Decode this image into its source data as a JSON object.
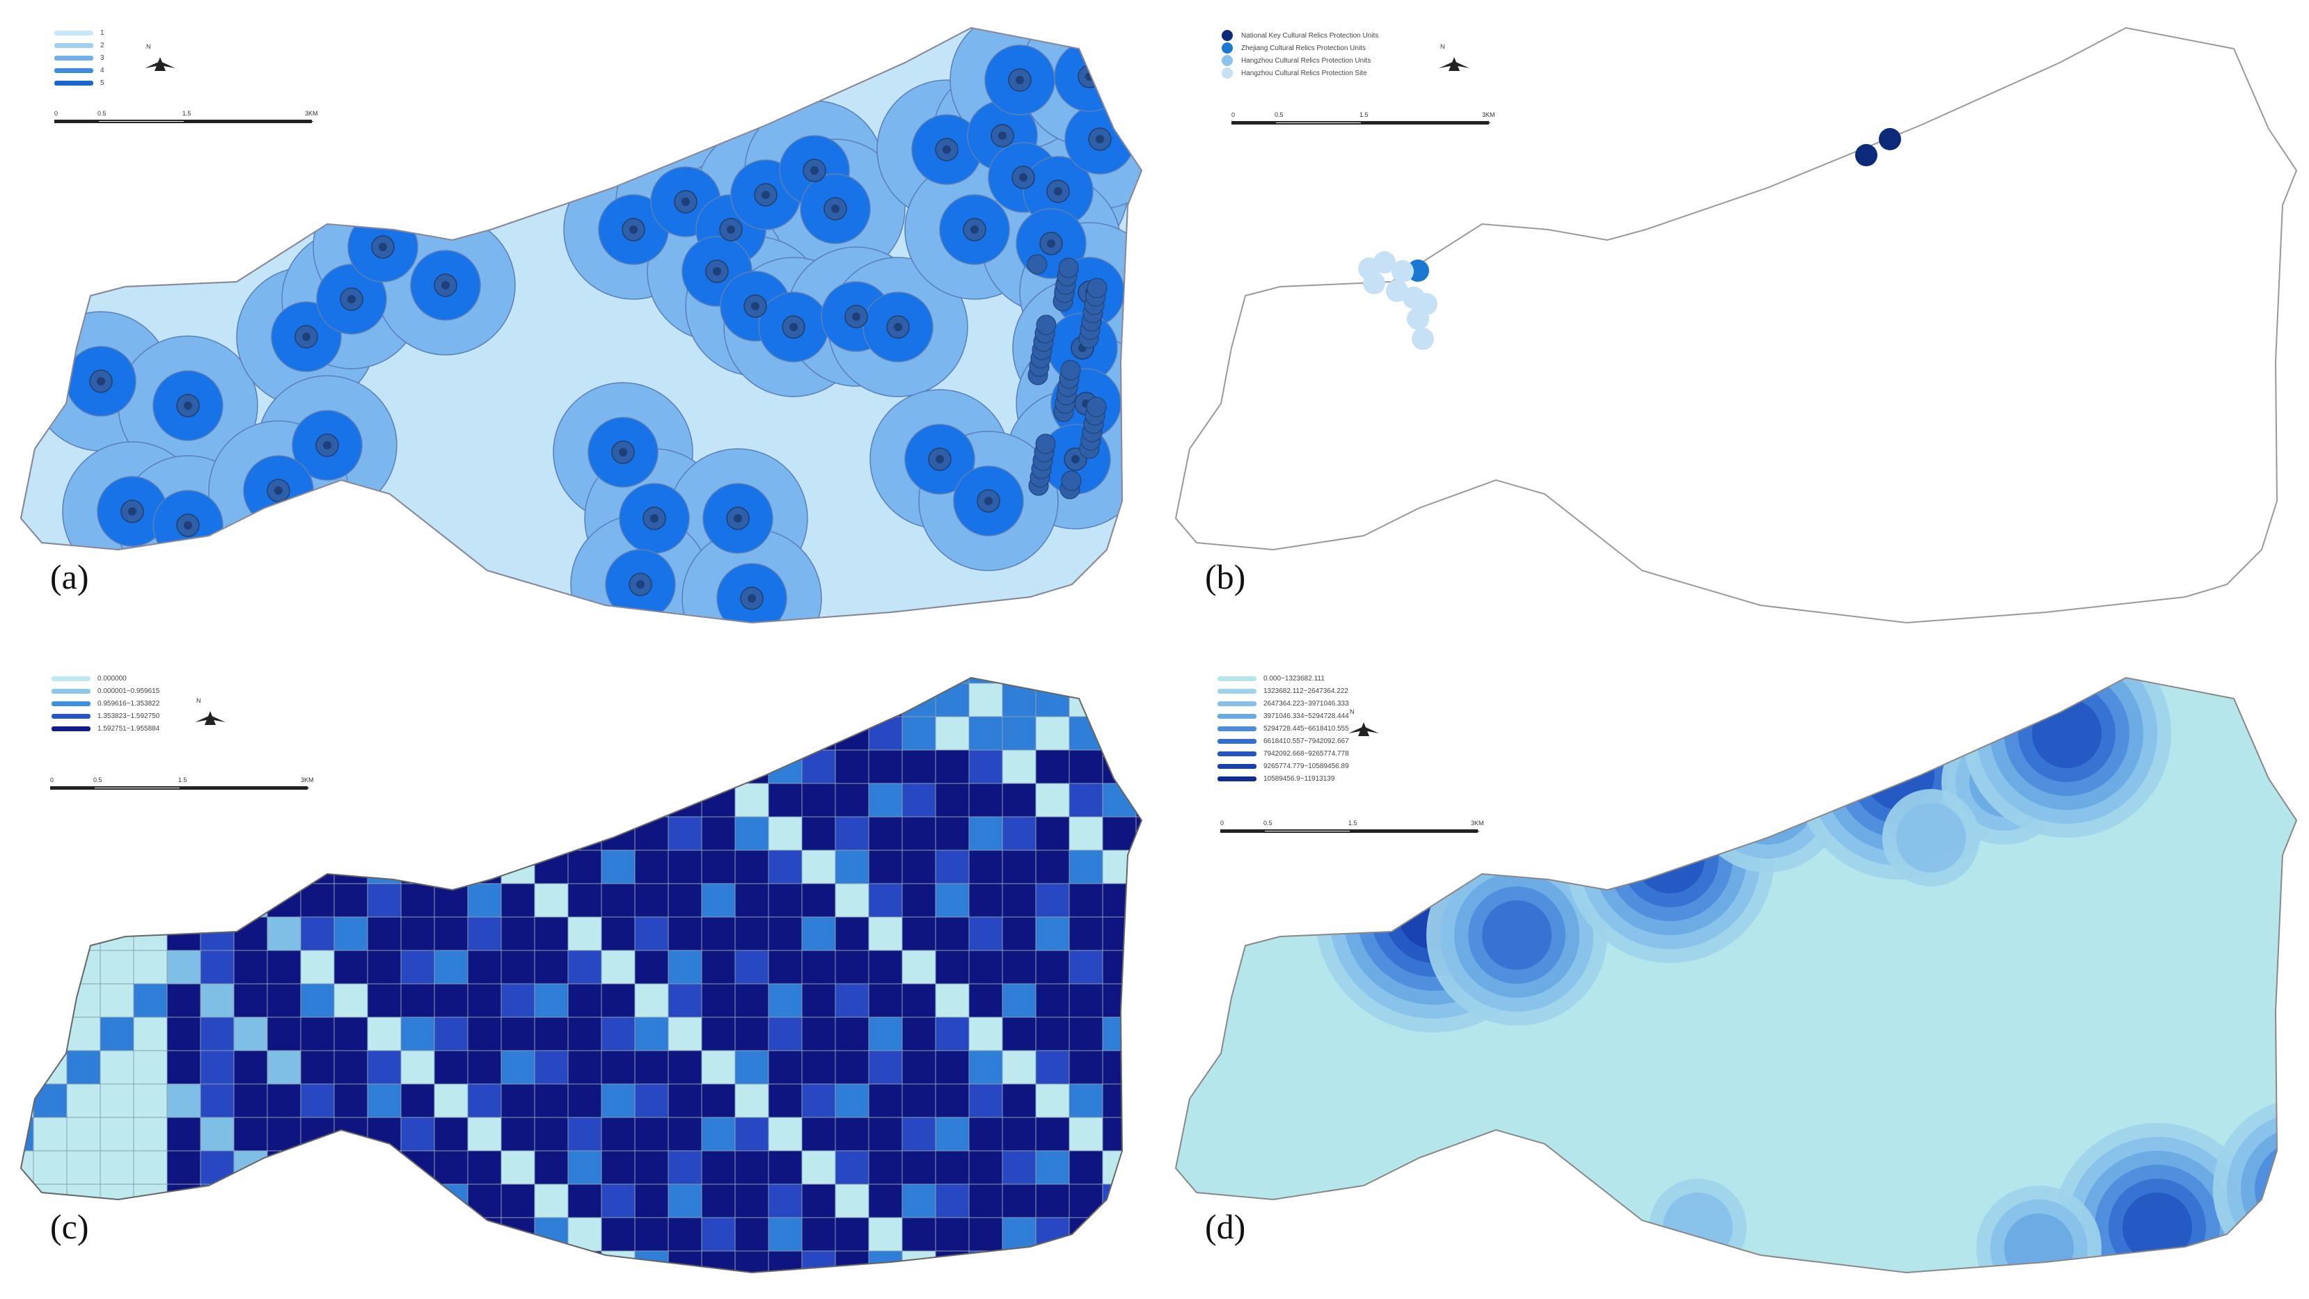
{
  "panels": [
    {
      "id": "a",
      "label": "(a)",
      "legend_type": "line",
      "legend": [
        {
          "text": "1",
          "color": "#c9e7fa"
        },
        {
          "text": "2",
          "color": "#9fd0f2"
        },
        {
          "text": "3",
          "color": "#6fb0ea"
        },
        {
          "text": "4",
          "color": "#3f8de2"
        },
        {
          "text": "5",
          "color": "#1866d6"
        }
      ],
      "north_label": "N",
      "scale_ticks": [
        "0",
        "0.5",
        "1.5",
        "3KM"
      ]
    },
    {
      "id": "b",
      "label": "(b)",
      "legend_type": "dot",
      "legend": [
        {
          "text": "National Key Cultural Relics Protection Units",
          "color": "#0d2a7a"
        },
        {
          "text": "Zhejiang Cultural Relics Protection Units",
          "color": "#1a78d2"
        },
        {
          "text": "Hangzhou Cultural Relics Protection Units",
          "color": "#8cc3ec"
        },
        {
          "text": "Hangzhou Cultural Relics Protection Site",
          "color": "#c6e0f6"
        }
      ],
      "north_label": "N",
      "scale_ticks": [
        "0",
        "0.5",
        "1.5",
        "3KM"
      ]
    },
    {
      "id": "c",
      "label": "(c)",
      "legend_type": "line",
      "legend": [
        {
          "text": "0.000000",
          "color": "#bde9ef"
        },
        {
          "text": "0.000001~0.959615",
          "color": "#8cc8ec"
        },
        {
          "text": "0.959616~1.353822",
          "color": "#3d8fe0"
        },
        {
          "text": "1.353823~1.592750",
          "color": "#2a55c8"
        },
        {
          "text": "1.592751~1.955884",
          "color": "#101a8c"
        }
      ],
      "north_label": "N",
      "scale_ticks": [
        "0",
        "0.5",
        "1.5",
        "3KM"
      ]
    },
    {
      "id": "d",
      "label": "(d)",
      "legend_type": "line",
      "legend": [
        {
          "text": "0.000~1323682.111",
          "color": "#b4e6ec"
        },
        {
          "text": "1323682.112~2647364.222",
          "color": "#9ed3ec"
        },
        {
          "text": "2647364.223~3971046.333",
          "color": "#86c0ea"
        },
        {
          "text": "3971046.334~5294728.444",
          "color": "#6aa8e4"
        },
        {
          "text": "5294728.445~6618410.555",
          "color": "#4d8cdc"
        },
        {
          "text": "6618410.557~7942092.667",
          "color": "#3470d2"
        },
        {
          "text": "7942092.668~9265774.778",
          "color": "#2456c2"
        },
        {
          "text": "9265774.779~10589456.89",
          "color": "#1840ae"
        },
        {
          "text": "10589456.9~11913139",
          "color": "#0f2c8e"
        }
      ],
      "north_label": "N",
      "scale_ticks": [
        "0",
        "0.5",
        "1.5",
        "3KM"
      ]
    }
  ],
  "colors": {
    "buffer_outer": "#c4e4f8",
    "buffer_mid": "#7cb6ee",
    "buffer_inner": "#1872e8",
    "buffer_core": "#2f5fa8",
    "buffer_center": "#1d3f7a",
    "grid_pale": "#bde9ef",
    "grid_light": "#7fbfe6",
    "grid_mid": "#2f7fd8",
    "grid_dark": "#2748c2",
    "grid_deep": "#0f1580",
    "kde_base": "#b4e6ec",
    "boundary": "#888888"
  }
}
